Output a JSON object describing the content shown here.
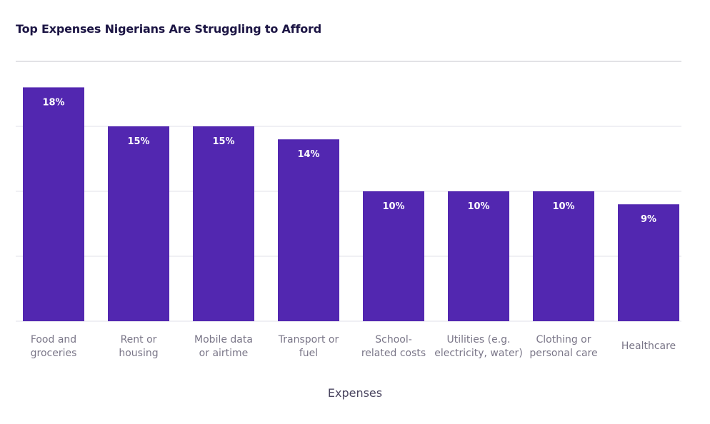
{
  "chart_data": {
    "type": "bar",
    "title": "Top Expenses Nigerians Are Struggling to Afford",
    "xlabel": "Expenses",
    "ylabel": "",
    "categories": [
      [
        "Food and",
        "groceries"
      ],
      [
        "Rent or",
        "housing"
      ],
      [
        "Mobile data",
        "or airtime"
      ],
      [
        "Transport or",
        "fuel"
      ],
      [
        "School-",
        "related costs"
      ],
      [
        "Utilities (e.g.",
        "electricity, water)"
      ],
      [
        "Clothing or",
        "personal care"
      ],
      [
        "Healthcare"
      ]
    ],
    "values": [
      18,
      15,
      15,
      14,
      10,
      10,
      10,
      9
    ],
    "value_labels": [
      "18%",
      "15%",
      "15%",
      "14%",
      "10%",
      "10%",
      "10%",
      "9%"
    ],
    "ylim": [
      0,
      20
    ],
    "grid": true,
    "bar_color": "#5227b0",
    "grid_color": "#e2e2e8",
    "top_rule_color": "#c4c4cc"
  }
}
